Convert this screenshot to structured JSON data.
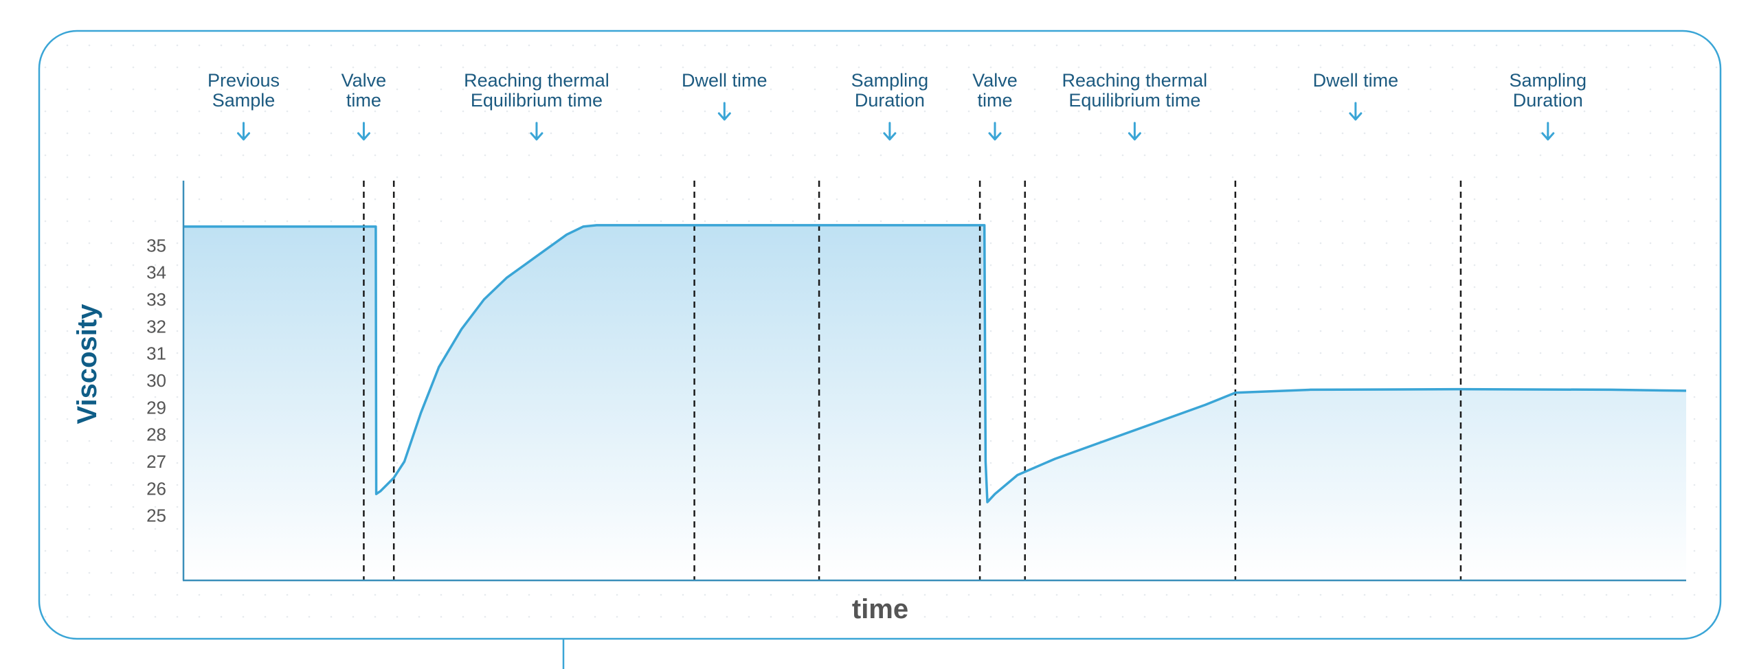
{
  "chart_data": {
    "type": "area",
    "xlabel": "time",
    "ylabel": "Viscosity",
    "yticks": [
      25,
      26,
      27,
      28,
      29,
      30,
      31,
      32,
      33,
      34,
      35
    ],
    "xlim": [
      0,
      100
    ],
    "ylim": [
      22.6,
      37.4
    ],
    "grid": false,
    "phases": [
      {
        "label": [
          "Previous",
          "Sample"
        ],
        "x": 4
      },
      {
        "label": [
          "Valve",
          "time"
        ],
        "x": 12
      },
      {
        "label": [
          "Reaching thermal",
          "Equilibrium time"
        ],
        "x": 23.5
      },
      {
        "label": [
          "Dwell time"
        ],
        "x": 36
      },
      {
        "label": [
          "Sampling",
          "Duration"
        ],
        "x": 47
      },
      {
        "label": [
          "Valve",
          "time"
        ],
        "x": 54
      },
      {
        "label": [
          "Reaching thermal",
          "Equilibrium time"
        ],
        "x": 63.3
      },
      {
        "label": [
          "Dwell time"
        ],
        "x": 78
      },
      {
        "label": [
          "Sampling",
          "Duration"
        ],
        "x": 90.8
      }
    ],
    "boundaries": [
      12,
      14,
      34,
      42.3,
      53,
      56,
      70,
      85
    ],
    "series": [
      {
        "x": [
          0,
          12.8,
          12.83,
          13.1,
          14.0,
          14.7,
          15.8,
          17.0,
          18.5,
          20.0,
          21.5,
          23.5,
          25.5,
          26.6,
          27.5,
          53.3,
          53.38,
          53.5,
          54.0,
          55.5,
          58.0,
          61.0,
          65.0,
          68.0,
          70.0,
          75.0,
          85.0,
          95.0,
          100.0
        ],
        "y": [
          35.7,
          35.7,
          25.8,
          25.9,
          26.4,
          27.0,
          28.8,
          30.5,
          31.9,
          33.0,
          33.8,
          34.6,
          35.4,
          35.7,
          35.75,
          35.75,
          27.0,
          25.5,
          25.8,
          26.5,
          27.1,
          27.7,
          28.5,
          29.1,
          29.55,
          29.66,
          29.68,
          29.66,
          29.62
        ]
      }
    ]
  }
}
